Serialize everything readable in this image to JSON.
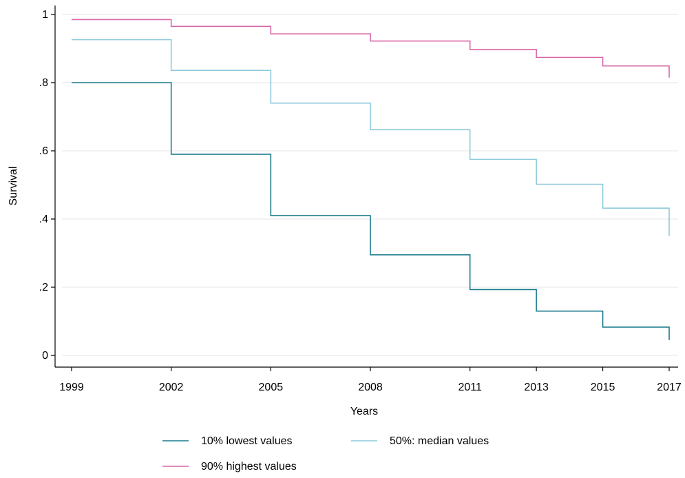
{
  "chart_data": {
    "type": "line",
    "step": true,
    "title": "",
    "xlabel": "Years",
    "ylabel": "Survival",
    "x_ticks": [
      1999,
      2002,
      2005,
      2008,
      2011,
      2013,
      2015,
      2017
    ],
    "y_ticks": [
      0,
      0.2,
      0.4,
      0.6,
      0.8,
      1
    ],
    "y_tick_labels": [
      "0",
      ".2",
      ".4",
      ".6",
      ".8",
      "1"
    ],
    "ylim": [
      0,
      1
    ],
    "grid": "horizontal",
    "legend_position": "bottom",
    "series": [
      {
        "name": "10% lowest values",
        "color": "#1a7a8c",
        "values": [
          0.8,
          0.59,
          0.41,
          0.295,
          0.193,
          0.13,
          0.083,
          0.045
        ]
      },
      {
        "name": "50%: median values",
        "color": "#8dc9dc",
        "values": [
          0.926,
          0.836,
          0.74,
          0.662,
          0.575,
          0.502,
          0.432,
          0.35
        ]
      },
      {
        "name": "90% highest values",
        "color": "#d966a8",
        "values": [
          0.985,
          0.965,
          0.943,
          0.922,
          0.897,
          0.874,
          0.849,
          0.815
        ]
      }
    ]
  }
}
